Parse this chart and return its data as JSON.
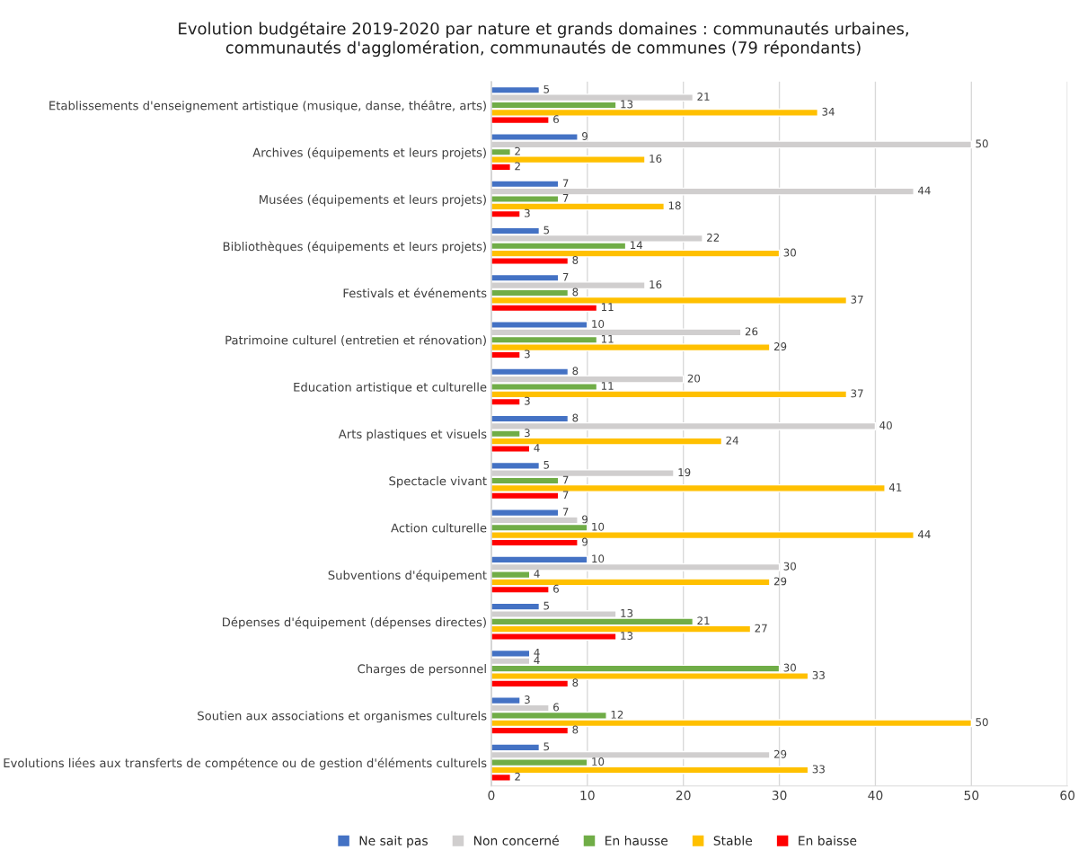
{
  "chart_data": {
    "type": "bar",
    "orientation": "horizontal",
    "title": "Evolution budgétaire 2019-2020 par nature et grands domaines : communautés urbaines, communautés d'agglomération, communautés de communes (79 répondants)",
    "categories": [
      "Etablissements d'enseignement artistique (musique, danse, théâtre, arts)",
      "Archives (équipements et leurs projets)",
      "Musées (équipements et leurs projets)",
      "Bibliothèques (équipements et leurs projets)",
      "Festivals et événements",
      "Patrimoine culturel (entretien et rénovation)",
      "Education artistique et culturelle",
      "Arts plastiques et visuels",
      "Spectacle vivant",
      "Action culturelle",
      "Subventions d'équipement",
      "Dépenses d'équipement (dépenses directes)",
      "Charges de personnel",
      "Soutien aux associations et organismes culturels",
      "Evolutions liées aux transferts de compétence ou de gestion d'éléments culturels"
    ],
    "series": [
      {
        "name": "Ne sait pas",
        "color": "#4472c4",
        "values": [
          5,
          9,
          7,
          5,
          7,
          10,
          8,
          8,
          5,
          7,
          10,
          5,
          4,
          3,
          5
        ]
      },
      {
        "name": "Non concerné",
        "color": "#d0cece",
        "values": [
          21,
          50,
          44,
          22,
          16,
          26,
          20,
          40,
          19,
          9,
          30,
          13,
          4,
          6,
          29
        ]
      },
      {
        "name": "En hausse",
        "color": "#70ad47",
        "values": [
          13,
          2,
          7,
          14,
          8,
          11,
          11,
          3,
          7,
          10,
          4,
          21,
          30,
          12,
          10
        ]
      },
      {
        "name": "Stable",
        "color": "#ffc000",
        "values": [
          34,
          16,
          18,
          30,
          37,
          29,
          37,
          24,
          41,
          44,
          29,
          27,
          33,
          50,
          33
        ]
      },
      {
        "name": "En baisse",
        "color": "#ff0000",
        "values": [
          6,
          2,
          3,
          8,
          11,
          3,
          3,
          4,
          7,
          9,
          6,
          13,
          8,
          8,
          2
        ]
      }
    ],
    "xlim": [
      0,
      60
    ],
    "xticks": [
      0,
      10,
      20,
      30,
      40,
      50,
      60
    ],
    "grid": "x",
    "legend": "bottom",
    "data_labels": true
  }
}
